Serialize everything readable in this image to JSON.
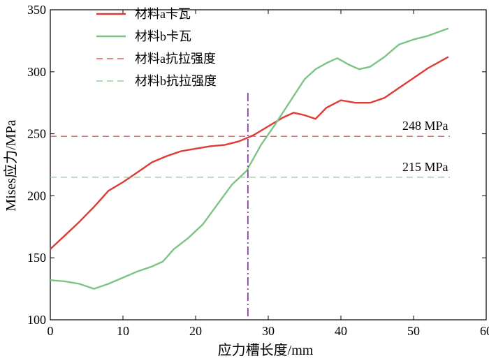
{
  "chart_data": {
    "type": "line",
    "title": "",
    "xlabel": "应力槽长度/mm",
    "ylabel": "Mises应力/MPa",
    "xlim": [
      0,
      60
    ],
    "ylim": [
      100,
      350
    ],
    "xticks": [
      0,
      10,
      20,
      30,
      40,
      50,
      60
    ],
    "yticks": [
      100,
      150,
      200,
      250,
      300,
      350
    ],
    "grid": false,
    "legend_position": "top-left",
    "series": [
      {
        "name": "材料a卡瓦",
        "color": "#e03a32",
        "style": "solid",
        "x": [
          0,
          2,
          4,
          6,
          8,
          10,
          12,
          14,
          16,
          18,
          20,
          22,
          24,
          26,
          28,
          30,
          32,
          33.5,
          35,
          36.5,
          38,
          40,
          42,
          44,
          46,
          48,
          50,
          52,
          54.8
        ],
        "y": [
          157,
          168,
          179,
          191,
          204,
          211,
          219,
          227,
          232,
          236,
          238,
          240,
          241,
          244,
          249,
          256,
          263,
          267,
          265,
          262,
          271,
          277,
          275,
          275,
          279,
          287,
          295,
          303,
          312
        ]
      },
      {
        "name": "材料b卡瓦",
        "color": "#7cc485",
        "style": "solid",
        "x": [
          0,
          2,
          4,
          6,
          8,
          10,
          12,
          14,
          15.5,
          17,
          19,
          21,
          23,
          25,
          27,
          29,
          31,
          33,
          35,
          36.5,
          38,
          39.5,
          41,
          42.5,
          44,
          46,
          48,
          50,
          52,
          54.8
        ],
        "y": [
          132,
          131,
          129,
          125,
          129,
          134,
          139,
          143,
          147,
          157,
          166,
          177,
          193,
          209,
          220,
          241,
          258,
          276,
          294,
          302,
          307,
          311,
          306,
          302,
          304,
          312,
          322,
          326,
          329,
          335
        ]
      },
      {
        "name": "材料a抗拉强度",
        "color": "#e03a32",
        "style": "dashed",
        "x": [
          0,
          55
        ],
        "y": [
          248,
          248
        ]
      },
      {
        "name": "材料b抗拉强度",
        "color": "#7cc485",
        "style": "dashed",
        "x": [
          0,
          55
        ],
        "y": [
          215,
          215
        ]
      }
    ],
    "vertical_marker": {
      "x": 27.2,
      "color": "#8b45a8",
      "style": "dash-dot"
    },
    "annotations": [
      {
        "text": "248 MPa",
        "x": 52,
        "y": 248
      },
      {
        "text": "215 MPa",
        "x": 52,
        "y": 215
      }
    ],
    "legend_text_colors": [
      "#d9702e",
      "#2a9fd0",
      "#d9702e",
      "#2a9fd0"
    ]
  }
}
